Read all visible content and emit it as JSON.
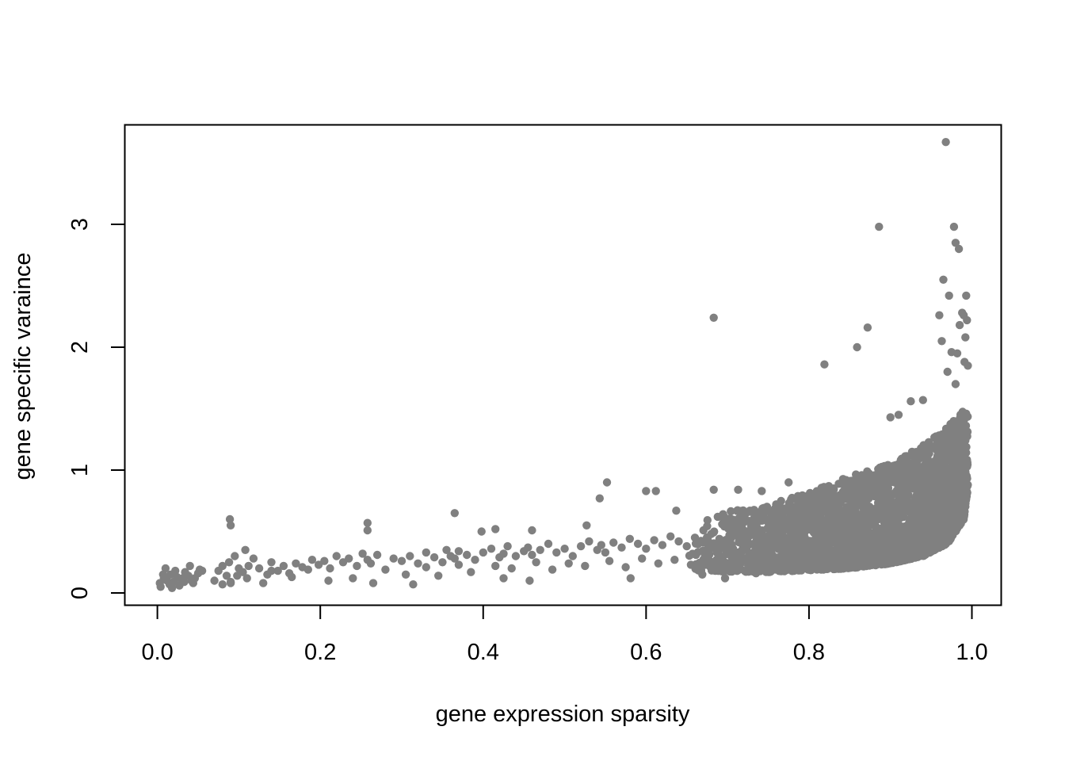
{
  "chart_data": {
    "type": "scatter",
    "title": "",
    "xlabel": "gene expression sparsity",
    "ylabel": "gene specific varaince",
    "xlim": [
      -0.04,
      1.036
    ],
    "ylim": [
      -0.1,
      3.81
    ],
    "xticks": [
      0.0,
      0.2,
      0.4,
      0.6,
      0.8,
      1.0
    ],
    "xtick_labels": [
      "0.0",
      "0.2",
      "0.4",
      "0.6",
      "0.8",
      "1.0"
    ],
    "yticks": [
      0,
      1,
      2,
      3
    ],
    "ytick_labels": [
      "0",
      "1",
      "2",
      "3"
    ],
    "grid": false,
    "legend": "none",
    "point_color": "#808080",
    "series": [
      {
        "x": [
          0.003,
          0.008,
          0.012,
          0.016,
          0.02,
          0.024,
          0.029,
          0.034,
          0.038,
          0.042,
          0.046,
          0.05,
          0.055,
          0.004,
          0.01,
          0.015,
          0.022,
          0.027,
          0.033,
          0.04,
          0.007,
          0.018,
          0.031,
          0.044,
          0.052,
          0.07,
          0.075,
          0.08,
          0.085,
          0.088,
          0.09,
          0.095,
          0.1,
          0.105,
          0.108,
          0.112,
          0.118,
          0.125,
          0.135,
          0.14,
          0.148,
          0.155,
          0.162,
          0.17,
          0.178,
          0.185,
          0.19,
          0.198,
          0.205,
          0.212,
          0.22,
          0.228,
          0.235,
          0.245,
          0.252,
          0.258,
          0.262,
          0.27,
          0.29,
          0.3,
          0.31,
          0.32,
          0.33,
          0.34,
          0.35,
          0.355,
          0.36,
          0.365,
          0.37,
          0.38,
          0.39,
          0.4,
          0.41,
          0.42,
          0.425,
          0.43,
          0.44,
          0.45,
          0.455,
          0.46,
          0.47,
          0.48,
          0.49,
          0.5,
          0.51,
          0.52,
          0.53,
          0.54,
          0.545,
          0.55,
          0.56,
          0.57,
          0.58,
          0.59,
          0.6,
          0.61,
          0.62,
          0.63,
          0.64,
          0.65,
          0.66,
          0.67,
          0.68,
          0.69,
          0.7,
          0.71,
          0.72,
          0.73,
          0.74,
          0.75,
          0.76,
          0.77,
          0.78,
          0.79,
          0.08,
          0.09,
          0.098,
          0.11,
          0.13,
          0.14,
          0.165,
          0.21,
          0.24,
          0.265,
          0.28,
          0.305,
          0.33,
          0.345,
          0.37,
          0.385,
          0.415,
          0.435,
          0.465,
          0.485,
          0.505,
          0.525,
          0.555,
          0.575,
          0.595,
          0.615,
          0.635,
          0.655,
          0.675,
          0.695,
          0.715,
          0.735,
          0.755,
          0.775,
          0.795,
          0.089,
          0.09,
          0.258,
          0.258,
          0.365,
          0.415,
          0.398,
          0.46,
          0.527,
          0.552,
          0.543,
          0.6,
          0.612,
          0.683,
          0.713,
          0.742,
          0.775,
          0.637,
          0.688,
          0.314,
          0.425,
          0.457,
          0.581,
          0.669,
          0.697,
          0.735,
          0.683,
          0.819,
          0.859,
          0.872,
          0.886,
          0.968,
          0.978,
          0.98,
          0.984,
          0.965,
          0.972,
          0.993,
          0.99,
          0.96,
          0.985,
          0.988,
          0.994,
          0.992,
          0.963,
          0.975,
          0.982,
          0.991,
          0.995,
          0.94,
          0.925,
          0.97,
          0.98,
          0.9,
          0.91
        ],
        "y": [
          0.08,
          0.12,
          0.1,
          0.15,
          0.09,
          0.13,
          0.11,
          0.17,
          0.14,
          0.1,
          0.12,
          0.16,
          0.18,
          0.05,
          0.2,
          0.07,
          0.18,
          0.06,
          0.09,
          0.22,
          0.15,
          0.04,
          0.12,
          0.08,
          0.19,
          0.1,
          0.18,
          0.22,
          0.14,
          0.25,
          0.08,
          0.3,
          0.2,
          0.17,
          0.35,
          0.22,
          0.28,
          0.2,
          0.15,
          0.25,
          0.18,
          0.22,
          0.16,
          0.24,
          0.21,
          0.19,
          0.27,
          0.23,
          0.26,
          0.2,
          0.3,
          0.25,
          0.28,
          0.22,
          0.32,
          0.27,
          0.24,
          0.31,
          0.28,
          0.26,
          0.3,
          0.24,
          0.33,
          0.29,
          0.25,
          0.35,
          0.3,
          0.28,
          0.34,
          0.31,
          0.27,
          0.33,
          0.36,
          0.29,
          0.32,
          0.38,
          0.3,
          0.34,
          0.37,
          0.31,
          0.35,
          0.4,
          0.33,
          0.36,
          0.3,
          0.38,
          0.42,
          0.35,
          0.39,
          0.33,
          0.41,
          0.37,
          0.44,
          0.4,
          0.36,
          0.43,
          0.39,
          0.46,
          0.42,
          0.38,
          0.45,
          0.41,
          0.48,
          0.44,
          0.4,
          0.47,
          0.43,
          0.5,
          0.46,
          0.42,
          0.49,
          0.45,
          0.52,
          0.48,
          0.07,
          0.09,
          0.14,
          0.12,
          0.08,
          0.18,
          0.13,
          0.1,
          0.12,
          0.08,
          0.19,
          0.15,
          0.21,
          0.14,
          0.23,
          0.17,
          0.22,
          0.2,
          0.25,
          0.19,
          0.24,
          0.22,
          0.26,
          0.21,
          0.28,
          0.24,
          0.27,
          0.23,
          0.29,
          0.26,
          0.3,
          0.25,
          0.31,
          0.27,
          0.33,
          0.6,
          0.55,
          0.57,
          0.51,
          0.65,
          0.52,
          0.5,
          0.51,
          0.55,
          0.9,
          0.77,
          0.83,
          0.83,
          0.84,
          0.84,
          0.83,
          0.9,
          0.67,
          0.62,
          0.07,
          0.12,
          0.1,
          0.12,
          0.15,
          0.12,
          0.16,
          2.24,
          1.86,
          2.0,
          2.16,
          2.98,
          3.67,
          2.98,
          2.85,
          2.8,
          2.55,
          2.42,
          2.42,
          2.26,
          2.26,
          2.18,
          2.28,
          2.22,
          2.08,
          2.05,
          1.96,
          1.95,
          1.88,
          1.85,
          1.57,
          1.56,
          1.8,
          1.7,
          1.43,
          1.45
        ]
      }
    ],
    "dense_band": {
      "description_lower_edge": [
        [
          0.65,
          0.18
        ],
        [
          0.75,
          0.17
        ],
        [
          0.85,
          0.2
        ],
        [
          0.9,
          0.24
        ],
        [
          0.94,
          0.3
        ],
        [
          0.97,
          0.4
        ],
        [
          0.99,
          0.6
        ],
        [
          0.995,
          0.85
        ]
      ],
      "description_upper_edge": [
        [
          0.65,
          0.6
        ],
        [
          0.75,
          0.72
        ],
        [
          0.8,
          0.82
        ],
        [
          0.85,
          0.95
        ],
        [
          0.9,
          1.05
        ],
        [
          0.94,
          1.2
        ],
        [
          0.97,
          1.35
        ],
        [
          0.99,
          1.5
        ]
      ],
      "point_count": 2800
    }
  }
}
